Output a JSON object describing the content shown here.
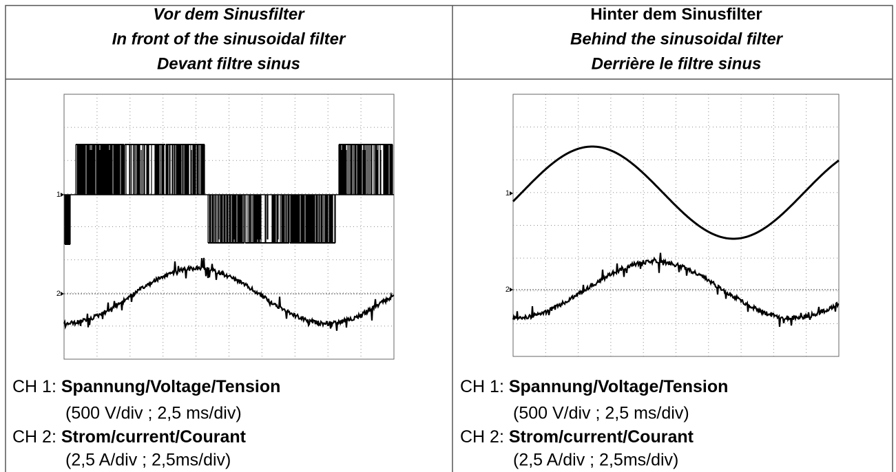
{
  "columns": [
    {
      "title": [
        "Vor dem Sinusfilter",
        "In front of the sinusoidal filter",
        "Devant filtre sinus"
      ],
      "scope": {
        "markers": [
          "1",
          "2"
        ]
      },
      "captions": [
        {
          "label": "CH 1:",
          "text": "Spannung/Voltage/Tension",
          "scale": "(500 V/div ; 2,5 ms/div)"
        },
        {
          "label": "CH 2:",
          "text": "Strom/current/Courant",
          "scale": "(2,5 A/div ; 2,5ms/div)"
        }
      ]
    },
    {
      "title": [
        "Hinter dem Sinusfilter",
        "Behind the sinusoidal filter",
        "Derrière le filtre sinus"
      ],
      "scope": {
        "markers": [
          "1",
          "2"
        ]
      },
      "captions": [
        {
          "label": "CH 1:",
          "text": "Spannung/Voltage/Tension",
          "scale": "(500 V/div ; 2,5 ms/div)"
        },
        {
          "label": "CH 2:",
          "text": "Strom/current/Courant",
          "scale": "(2,5 A/div ; 2,5ms/div)"
        }
      ]
    }
  ]
}
